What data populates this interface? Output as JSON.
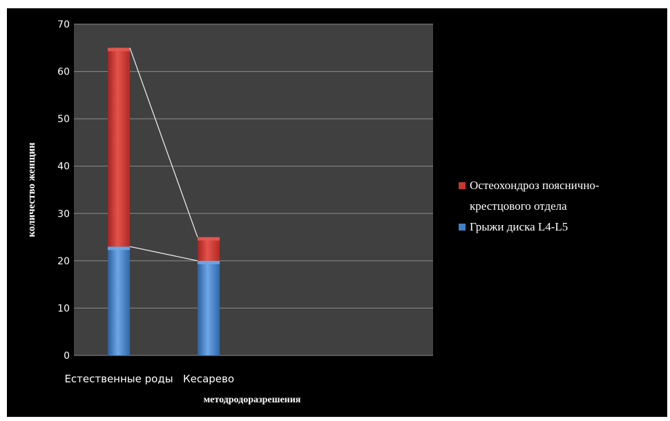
{
  "chart_data": {
    "type": "bar",
    "stacked": true,
    "categories": [
      "Естественные роды",
      "Кесарево"
    ],
    "series": [
      {
        "name": "Грыжи диска L4-L5",
        "values": [
          23,
          20
        ],
        "color": "#4a86c8"
      },
      {
        "name": "Остеохондроз пояснично-крестцового отдела",
        "values": [
          42,
          5
        ],
        "color": "#c0392b"
      }
    ],
    "legend_lines": [
      [
        "Остеохондроз пояснично-",
        "крестцового отдела"
      ],
      [
        "Грыжи диска L4-L5"
      ]
    ],
    "xlabel": "методродоразрешения",
    "ylabel": "количество женщин",
    "ylim": [
      0,
      70
    ],
    "yticks": [
      0,
      10,
      20,
      30,
      40,
      50,
      60,
      70
    ],
    "grid": true,
    "series_lines": true,
    "legend_position": "right"
  }
}
